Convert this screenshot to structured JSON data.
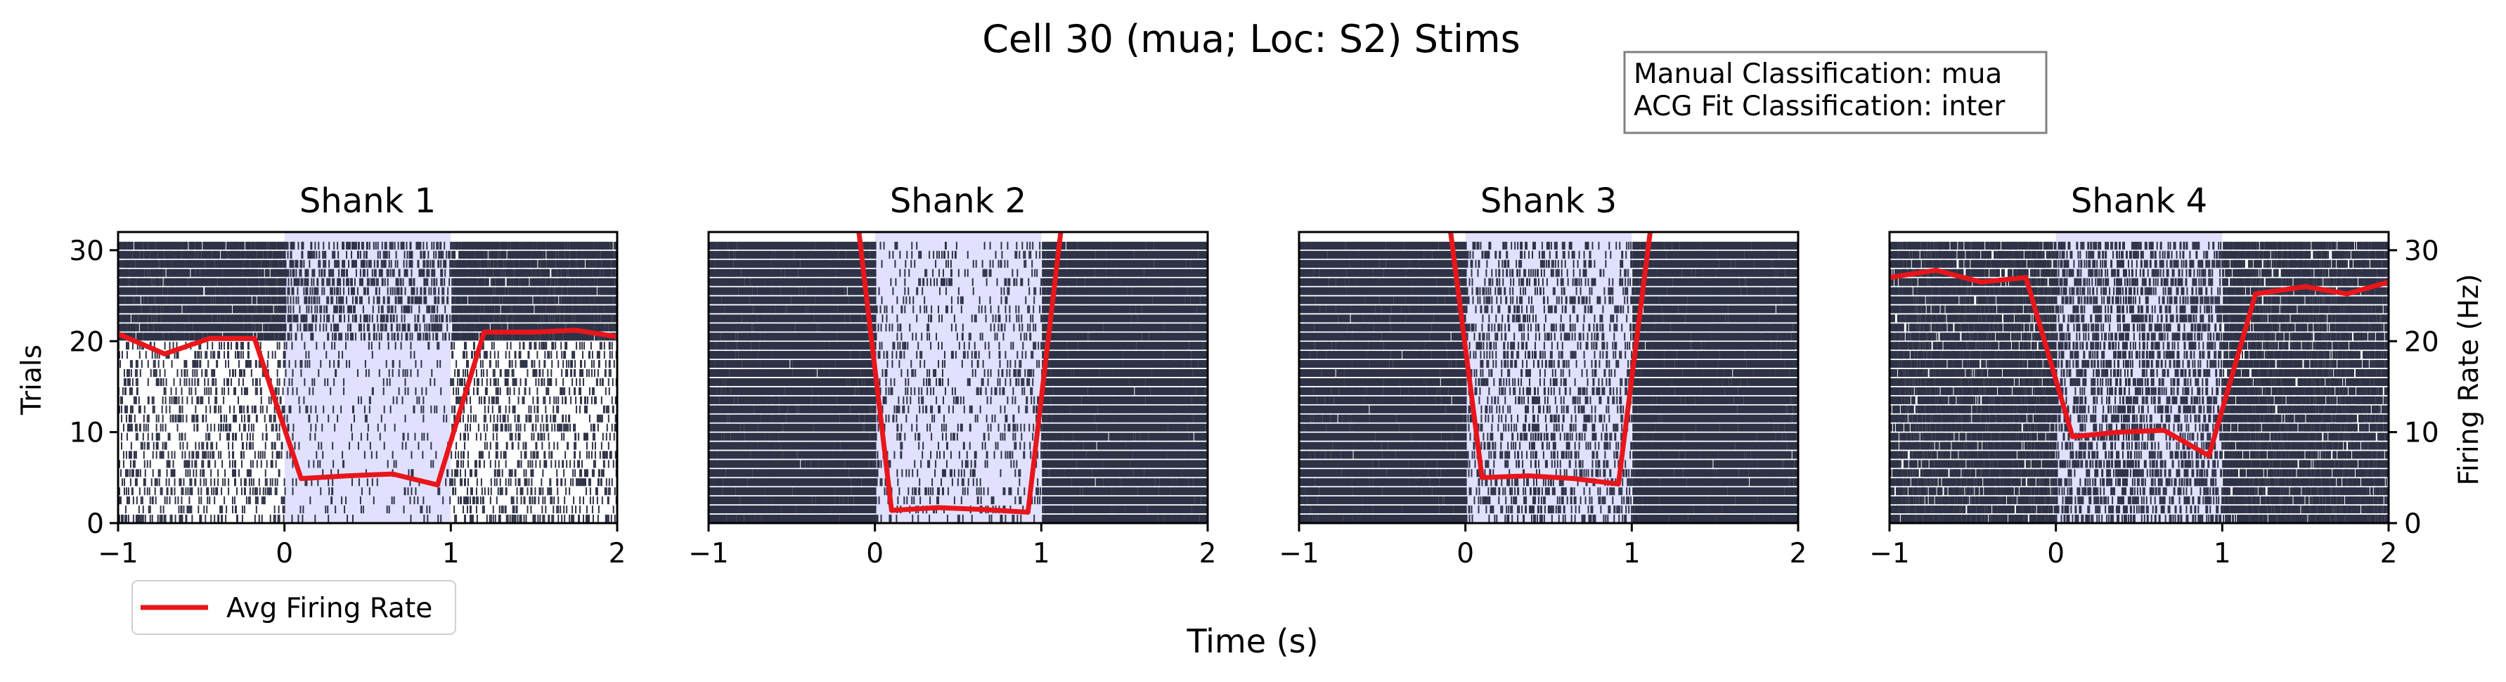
{
  "figure": {
    "suptitle": "Cell 30 (mua; Loc: S2) Stims",
    "classification_box": {
      "manual": "Manual Classification: mua",
      "acg": "ACG Fit Classification: inter"
    },
    "legend_label": "Avg Firing Rate",
    "shared_xlabel": "Time (s)",
    "left_ylabel": "Trials",
    "right_ylabel": "Firing Rate (Hz)",
    "colors": {
      "spike": "#2f3347",
      "rate_line": "#e8161b",
      "stim_shade": "#e1e1ff",
      "box_border": "#808080"
    }
  },
  "chart_data": [
    {
      "type": "line",
      "title": "Shank 1",
      "xlim": [
        -1,
        2
      ],
      "ylim": [
        0,
        32
      ],
      "x_ticks": [
        "−1",
        "0",
        "1",
        "2"
      ],
      "y_ticks": [
        "0",
        "10",
        "20",
        "30"
      ],
      "n_trials": 31,
      "stim_window": [
        0,
        1
      ],
      "raster_density": [
        0.9,
        0.3,
        0.9
      ],
      "dense_trials_from": 20,
      "series": [
        {
          "name": "Avg Firing Rate",
          "x": [
            -1.0,
            -0.72,
            -0.45,
            -0.18,
            0.1,
            0.38,
            0.65,
            0.92,
            1.2,
            1.5,
            1.75,
            2.0
          ],
          "y": [
            20.8,
            18.6,
            20.3,
            20.3,
            4.9,
            5.2,
            5.4,
            4.2,
            21.0,
            21.0,
            21.2,
            20.5
          ]
        }
      ]
    },
    {
      "type": "line",
      "title": "Shank 2",
      "xlim": [
        -1,
        2
      ],
      "ylim": [
        0,
        32
      ],
      "x_ticks": [
        "−1",
        "0",
        "1",
        "2"
      ],
      "y_ticks": [],
      "n_trials": 31,
      "stim_window": [
        0,
        1
      ],
      "raster_density": [
        0.97,
        0.12,
        0.97
      ],
      "dense_trials_from": 0,
      "series": [
        {
          "name": "Avg Firing Rate",
          "x": [
            -0.18,
            0.1,
            0.38,
            0.65,
            0.92,
            1.2
          ],
          "y": [
            45,
            1.4,
            1.7,
            1.5,
            1.2,
            45
          ]
        }
      ]
    },
    {
      "type": "line",
      "title": "Shank 3",
      "xlim": [
        -1,
        2
      ],
      "ylim": [
        0,
        32
      ],
      "x_ticks": [
        "−1",
        "0",
        "1",
        "2"
      ],
      "y_ticks": [],
      "n_trials": 31,
      "stim_window": [
        0,
        1
      ],
      "raster_density": [
        0.97,
        0.22,
        0.97
      ],
      "dense_trials_from": 0,
      "series": [
        {
          "name": "Avg Firing Rate",
          "x": [
            -0.18,
            0.1,
            0.38,
            0.65,
            0.92,
            1.2
          ],
          "y": [
            45,
            5.0,
            5.2,
            4.9,
            4.3,
            45
          ]
        }
      ]
    },
    {
      "type": "line",
      "title": "Shank 4",
      "xlim": [
        -1,
        2
      ],
      "ylim": [
        0,
        32
      ],
      "x_ticks": [
        "−1",
        "0",
        "1",
        "2"
      ],
      "y_ticks": [],
      "right_y_ticks": [
        "0",
        "10",
        "20",
        "30"
      ],
      "n_trials": 31,
      "stim_window": [
        0,
        1
      ],
      "raster_density": [
        0.82,
        0.35,
        0.82
      ],
      "dense_trials_from": 0,
      "series": [
        {
          "name": "Avg Firing Rate",
          "x": [
            -1.0,
            -0.72,
            -0.45,
            -0.18,
            0.1,
            0.38,
            0.65,
            0.92,
            1.2,
            1.5,
            1.75,
            2.0
          ],
          "y": [
            27.0,
            27.8,
            26.5,
            27.0,
            9.5,
            10.0,
            10.2,
            7.4,
            25.2,
            26.0,
            25.2,
            26.5
          ]
        }
      ]
    }
  ]
}
